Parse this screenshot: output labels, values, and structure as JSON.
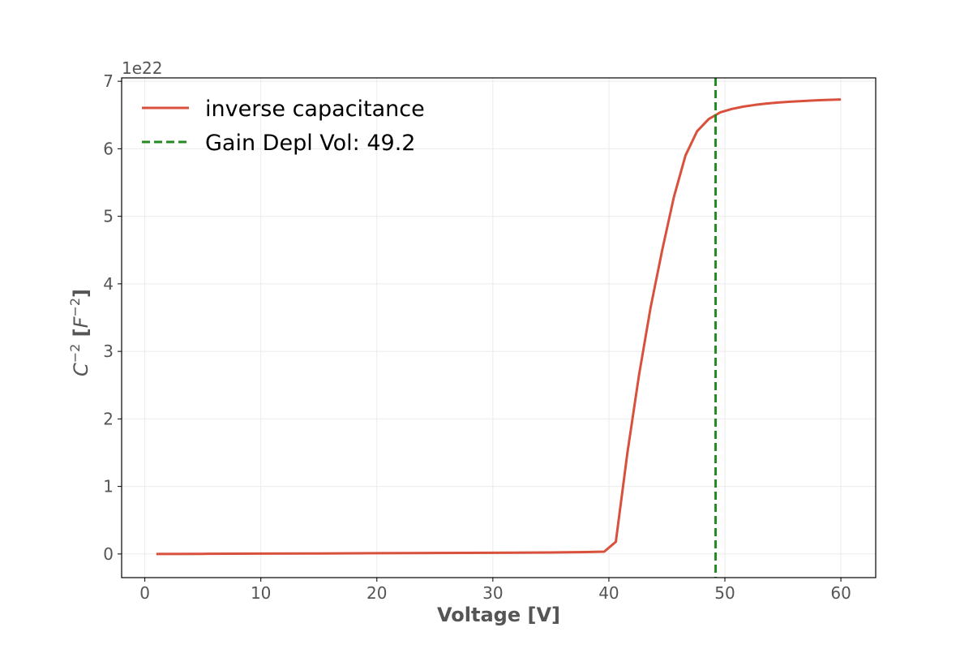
{
  "chart_data": {
    "type": "line",
    "title": "",
    "xlabel": "Voltage [V]",
    "ylabel_base": "C",
    "ylabel_exp": "−2",
    "ylabel_unit_open": " [",
    "ylabel_unit": "F",
    "ylabel_unit_exp": "−2",
    "ylabel_unit_close": "]",
    "y_offset_text": "1e22",
    "xlim": [
      -2,
      63
    ],
    "ylim": [
      -0.35,
      7.05
    ],
    "x_ticks": [
      0,
      10,
      20,
      30,
      40,
      50,
      60
    ],
    "y_ticks": [
      0,
      1,
      2,
      3,
      4,
      5,
      6,
      7
    ],
    "grid": true,
    "legend_position": "top-left",
    "colors": {
      "series": "#d9503c",
      "vline": "#228b22",
      "grid": "#ebebeb",
      "text": "#555555"
    },
    "series": [
      {
        "name": "inverse capacitance",
        "x": [
          1,
          5,
          10,
          15,
          20,
          25,
          30,
          35,
          38,
          39.6,
          40.6,
          41.6,
          42.6,
          43.6,
          44.6,
          45.6,
          46.6,
          47.6,
          48.6,
          49.6,
          50.6,
          51.6,
          52.6,
          53.6,
          54.6,
          55.6,
          56.6,
          57.6,
          58.6,
          60
        ],
        "y": [
          0.0,
          0.002,
          0.005,
          0.008,
          0.012,
          0.015,
          0.018,
          0.022,
          0.028,
          0.035,
          0.18,
          1.5,
          2.65,
          3.65,
          4.5,
          5.28,
          5.9,
          6.26,
          6.44,
          6.54,
          6.59,
          6.625,
          6.65,
          6.67,
          6.685,
          6.697,
          6.707,
          6.715,
          6.722,
          6.73
        ]
      }
    ],
    "vline": {
      "name": "Gain Depl Vol: 49.2",
      "x": 49.2
    }
  }
}
